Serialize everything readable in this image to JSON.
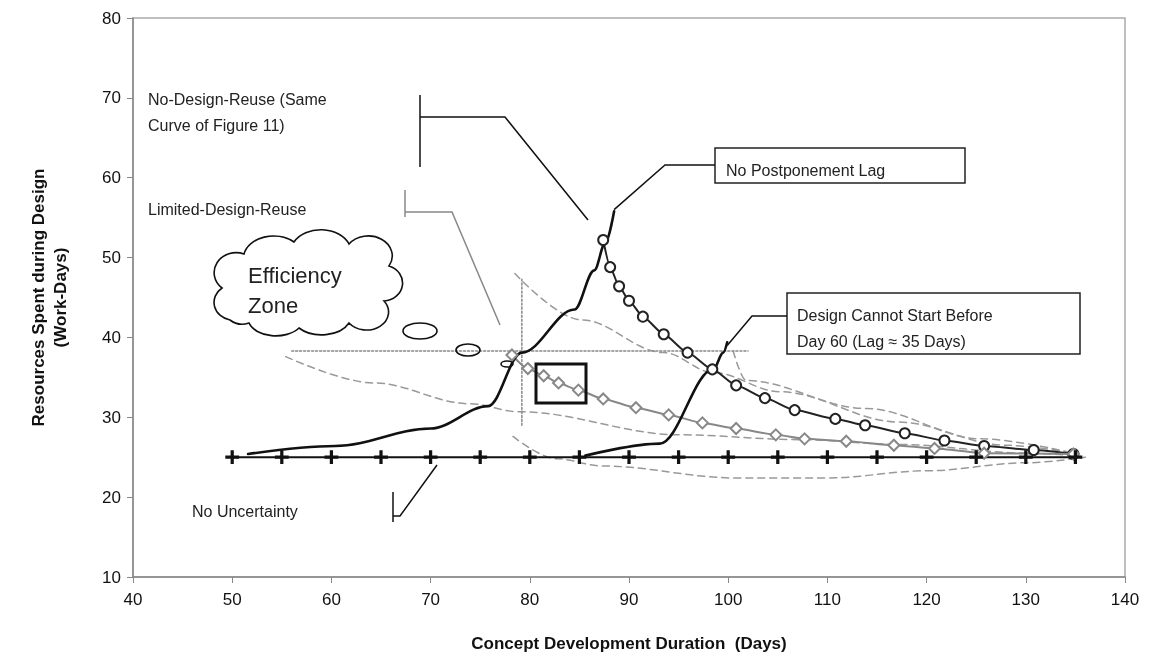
{
  "chart_data": {
    "type": "line",
    "xlabel": "Concept Development Duration  (Days)",
    "ylabel": "Resources Spent during Design (Work-Days)",
    "xlim": [
      40,
      140
    ],
    "xticks": [
      40,
      50,
      60,
      70,
      80,
      90,
      100,
      110,
      120,
      130,
      140
    ],
    "ylim": [
      10,
      80
    ],
    "yticks": [
      10,
      20,
      30,
      40,
      50,
      60,
      70,
      80
    ],
    "series": [
      {
        "color": "#222222",
        "marker": "circle",
        "line_style": "solid",
        "x": [
          87.4,
          88.1,
          89.0,
          90.0,
          91.4,
          93.5,
          95.9,
          98.4,
          100.8,
          103.7,
          106.7,
          110.8,
          113.8,
          117.8,
          121.8,
          125.8,
          130.8,
          134.8
        ],
        "values": [
          52.2,
          48.8,
          46.4,
          44.6,
          42.6,
          40.4,
          38.1,
          36.0,
          34.0,
          32.4,
          30.9,
          29.8,
          29.0,
          28.0,
          27.1,
          26.4,
          25.9,
          25.4
        ]
      },
      {
        "color": "#888888",
        "marker": "diamond",
        "line_style": "solid",
        "x": [
          78.2,
          79.8,
          81.4,
          82.9,
          84.9,
          87.4,
          90.7,
          94.0,
          97.4,
          100.8,
          104.8,
          107.7,
          111.9,
          116.7,
          120.8,
          125.8,
          134.8
        ],
        "values": [
          37.8,
          36.1,
          35.2,
          34.3,
          33.4,
          32.3,
          31.2,
          30.3,
          29.3,
          28.6,
          27.8,
          27.3,
          27.0,
          26.5,
          26.1,
          25.5,
          25.4
        ]
      },
      {
        "color": "#111111",
        "marker": "none",
        "line_style": "solid",
        "x": [
          51.6,
          60.4,
          70.0,
          75.8,
          79.2,
          84.5,
          86.5,
          87.6,
          88.5
        ],
        "values": [
          25.4,
          26.4,
          28.6,
          31.4,
          38.1,
          43.5,
          48.4,
          51.8,
          55.8
        ]
      },
      {
        "color": "#111111",
        "marker": "none",
        "line_style": "solid",
        "x": [
          85.6,
          93.1,
          98.5,
          99.5,
          99.9
        ],
        "values": [
          25.2,
          26.7,
          36.0,
          38.1,
          39.4
        ]
      },
      {
        "color": "#111111",
        "marker": "cross",
        "line_style": "solid",
        "x": [
          50,
          55,
          60,
          65,
          70,
          75,
          80,
          85,
          90,
          95,
          100,
          105,
          110,
          115,
          120,
          125,
          130,
          135
        ],
        "values": [
          25,
          25,
          25,
          25,
          25,
          25,
          25,
          25,
          25,
          25,
          25,
          25,
          25,
          25,
          25,
          25,
          25,
          25
        ]
      },
      {
        "color": "#999999",
        "marker": "none",
        "line_style": "dashed",
        "x": [
          78.5,
          85.2,
          93.5,
          98.5,
          105.2,
          117.2,
          128.0,
          134.8
        ],
        "values": [
          48.0,
          42.2,
          38.1,
          35.6,
          33.2,
          29.4,
          26.5,
          25.5
        ]
      },
      {
        "color": "#999999",
        "marker": "none",
        "line_style": "dashed",
        "x": [
          55.4,
          64.3,
          73.9,
          78.9,
          95.2,
          107.2,
          117.2,
          130.3,
          134.8
        ],
        "values": [
          37.6,
          34.3,
          31.7,
          30.7,
          27.8,
          27.2,
          26.6,
          25.5,
          25.2
        ]
      },
      {
        "color": "#999999",
        "marker": "none",
        "line_style": "dashed",
        "x": [
          78.3,
          82.7,
          87.3,
          100.8,
          110.0,
          120.0,
          130.0,
          136.0
        ],
        "values": [
          27.6,
          24.8,
          23.9,
          22.4,
          22.4,
          23.3,
          24.3,
          25.0
        ]
      },
      {
        "color": "#999999",
        "marker": "none",
        "line_style": "dashed",
        "x": [
          100.5,
          101.8,
          113.9,
          125.5,
          134.8
        ],
        "values": [
          38.3,
          34.6,
          31.1,
          27.3,
          25.5
        ]
      },
      {
        "color": "#888888",
        "marker": "none",
        "line_style": "dotted",
        "x": [
          56,
          102
        ],
        "values": [
          38.3,
          38.3
        ]
      },
      {
        "color": "#888888",
        "marker": "none",
        "line_style": "dotted",
        "x": [
          79.2,
          79.2
        ],
        "values": [
          29.0,
          47.5
        ]
      }
    ],
    "annotations": [
      "No-Design-Reuse (Same Curve of Figure 11)",
      "Limited-Design-Reuse",
      {
        "text": "No Postponement Lag",
        "x": 88.5,
        "y": 56
      },
      {
        "text": "Design Cannot Start Before Day 60 (Lag ≈ 35 Days)",
        "x": 99.9,
        "y": 39
      },
      "No Uncertainty",
      "Efficiency Zone"
    ]
  }
}
